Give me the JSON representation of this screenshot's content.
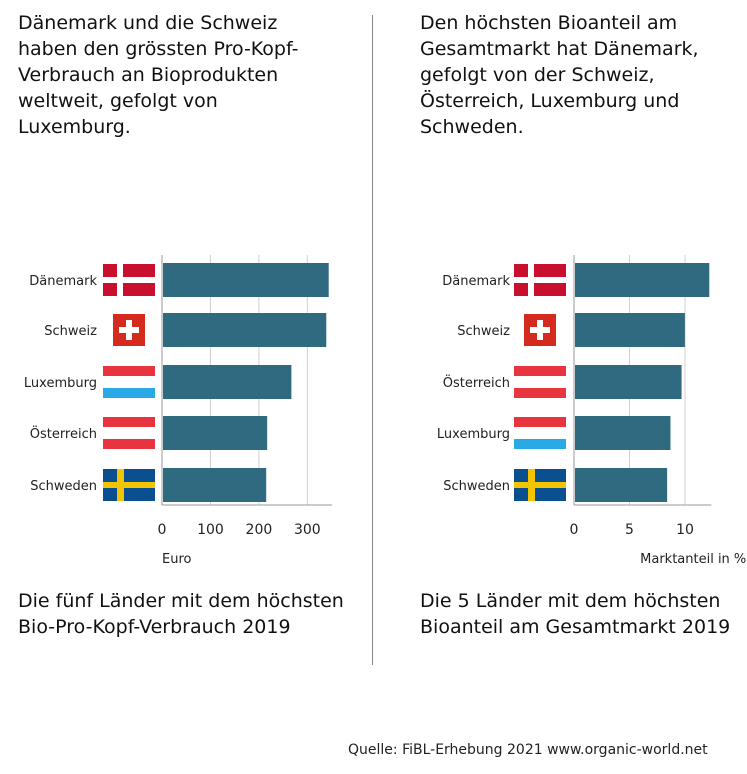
{
  "left_text": {
    "heading": "Dänemark und die Schweiz\nhaben den grössten Pro-Kopf-\nVerbrauch an Bioprodukten\nweltweit, gefolgt von\nLuxemburg.",
    "caption": "Die fünf Länder mit dem höchsten\nBio-Pro-Kopf-Verbrauch 2019"
  },
  "right_text": {
    "heading": "Den höchsten Bioanteil am\nGesamtmarkt hat Dänemark,\ngefolgt von der Schweiz,\nÖsterreich, Luxemburg und\nSchweden.",
    "caption": "Die 5 Länder mit dem höchsten\nBioanteil am Gesamtmarkt 2019"
  },
  "source": "Quelle: FiBL-Erhebung 2021 www.organic-world.net",
  "colors": {
    "bar": "#2f6a80",
    "grid": "#d0d0d0",
    "axis": "#999999"
  },
  "chart_data": [
    {
      "type": "bar",
      "orientation": "horizontal",
      "categories": [
        "Dänemark",
        "Schweiz",
        "Luxemburg",
        "Österreich",
        "Schweden"
      ],
      "flags": [
        "denmark",
        "switzerland",
        "luxembourg",
        "austria",
        "sweden"
      ],
      "values": [
        342,
        337,
        265,
        215,
        213
      ],
      "xlabel": "Euro",
      "xticks": [
        0,
        100,
        200,
        300
      ],
      "xlim": [
        0,
        345
      ],
      "grid": true
    },
    {
      "type": "bar",
      "orientation": "horizontal",
      "categories": [
        "Dänemark",
        "Schweiz",
        "Österreich",
        "Luxemburg",
        "Schweden"
      ],
      "flags": [
        "denmark",
        "switzerland",
        "austria",
        "luxembourg",
        "sweden"
      ],
      "values": [
        12.1,
        9.9,
        9.6,
        8.6,
        8.3
      ],
      "xlabel": "Marktanteil in %",
      "xticks": [
        0,
        5,
        10
      ],
      "xlim": [
        0,
        12.1
      ],
      "grid": true
    }
  ]
}
